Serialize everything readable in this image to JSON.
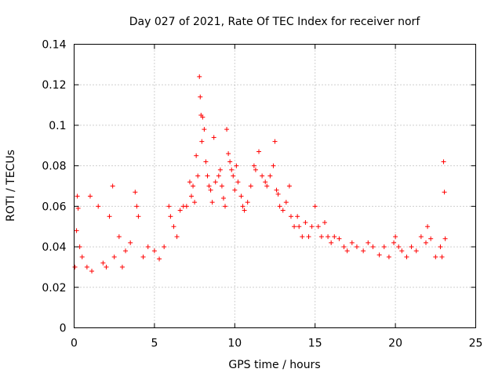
{
  "chart_data": {
    "type": "scatter",
    "title": "Day 027 of 2021, Rate Of TEC Index for receiver norf",
    "xlabel": "GPS time / hours",
    "ylabel": "ROTI / TECUs",
    "xlim": [
      0,
      25
    ],
    "ylim": [
      0,
      0.14
    ],
    "x_ticks": [
      0,
      5,
      10,
      15,
      20,
      25
    ],
    "y_ticks": [
      0,
      0.02,
      0.04,
      0.06,
      0.08,
      0.1,
      0.12,
      0.14
    ],
    "x_tick_labels": [
      "0",
      "5",
      "10",
      "15",
      "20",
      "25"
    ],
    "y_tick_labels": [
      "0",
      "0.02",
      "0.04",
      "0.06",
      "0.08",
      "0.1",
      "0.12",
      "0.14"
    ],
    "grid": true,
    "marker": "+",
    "color": "#ff0000",
    "series": [
      {
        "x": [
          0.05,
          0.15,
          0.2,
          0.25,
          0.35,
          0.5,
          0.8,
          1.0,
          1.1,
          1.5,
          1.8,
          2.0,
          2.2,
          2.4,
          2.5,
          2.8,
          3.0,
          3.2,
          3.5,
          3.8,
          3.9,
          4.0,
          4.3,
          4.6,
          5.0,
          5.3,
          5.6,
          5.9,
          6.0,
          6.2,
          6.4,
          6.6,
          6.8,
          7.0,
          7.2,
          7.3,
          7.4,
          7.5,
          7.6,
          7.7,
          7.8,
          7.85,
          7.9,
          7.95,
          8.0,
          8.1,
          8.2,
          8.3,
          8.4,
          8.5,
          8.6,
          8.7,
          8.8,
          9.0,
          9.1,
          9.2,
          9.3,
          9.4,
          9.5,
          9.6,
          9.7,
          9.8,
          9.9,
          10.0,
          10.1,
          10.2,
          10.4,
          10.5,
          10.6,
          10.8,
          11.0,
          11.2,
          11.3,
          11.5,
          11.7,
          11.9,
          12.0,
          12.2,
          12.4,
          12.5,
          12.6,
          12.7,
          12.8,
          13.0,
          13.2,
          13.4,
          13.5,
          13.7,
          13.9,
          14.0,
          14.2,
          14.4,
          14.6,
          14.8,
          15.0,
          15.2,
          15.4,
          15.6,
          15.8,
          16.0,
          16.2,
          16.5,
          16.8,
          17.0,
          17.3,
          17.6,
          18.0,
          18.3,
          18.6,
          19.0,
          19.3,
          19.6,
          19.9,
          20.0,
          20.2,
          20.4,
          20.7,
          21.0,
          21.3,
          21.6,
          21.9,
          22.0,
          22.2,
          22.5,
          22.8,
          22.9,
          23.0,
          23.05,
          23.1
        ],
        "y": [
          0.03,
          0.048,
          0.065,
          0.059,
          0.04,
          0.035,
          0.03,
          0.065,
          0.028,
          0.06,
          0.032,
          0.03,
          0.055,
          0.07,
          0.035,
          0.045,
          0.03,
          0.038,
          0.042,
          0.067,
          0.06,
          0.055,
          0.035,
          0.04,
          0.038,
          0.034,
          0.04,
          0.06,
          0.055,
          0.05,
          0.045,
          0.058,
          0.06,
          0.06,
          0.072,
          0.065,
          0.07,
          0.062,
          0.085,
          0.075,
          0.124,
          0.114,
          0.105,
          0.092,
          0.104,
          0.098,
          0.082,
          0.075,
          0.07,
          0.068,
          0.062,
          0.094,
          0.072,
          0.075,
          0.078,
          0.07,
          0.064,
          0.06,
          0.098,
          0.086,
          0.082,
          0.078,
          0.075,
          0.068,
          0.08,
          0.072,
          0.065,
          0.06,
          0.058,
          0.062,
          0.07,
          0.08,
          0.078,
          0.087,
          0.075,
          0.072,
          0.07,
          0.075,
          0.08,
          0.092,
          0.068,
          0.066,
          0.06,
          0.058,
          0.062,
          0.07,
          0.055,
          0.05,
          0.055,
          0.05,
          0.045,
          0.052,
          0.045,
          0.05,
          0.06,
          0.05,
          0.045,
          0.052,
          0.045,
          0.042,
          0.045,
          0.044,
          0.04,
          0.038,
          0.042,
          0.04,
          0.038,
          0.042,
          0.04,
          0.036,
          0.04,
          0.035,
          0.042,
          0.045,
          0.04,
          0.038,
          0.035,
          0.04,
          0.038,
          0.045,
          0.042,
          0.05,
          0.044,
          0.035,
          0.04,
          0.035,
          0.082,
          0.067,
          0.044
        ]
      }
    ]
  }
}
